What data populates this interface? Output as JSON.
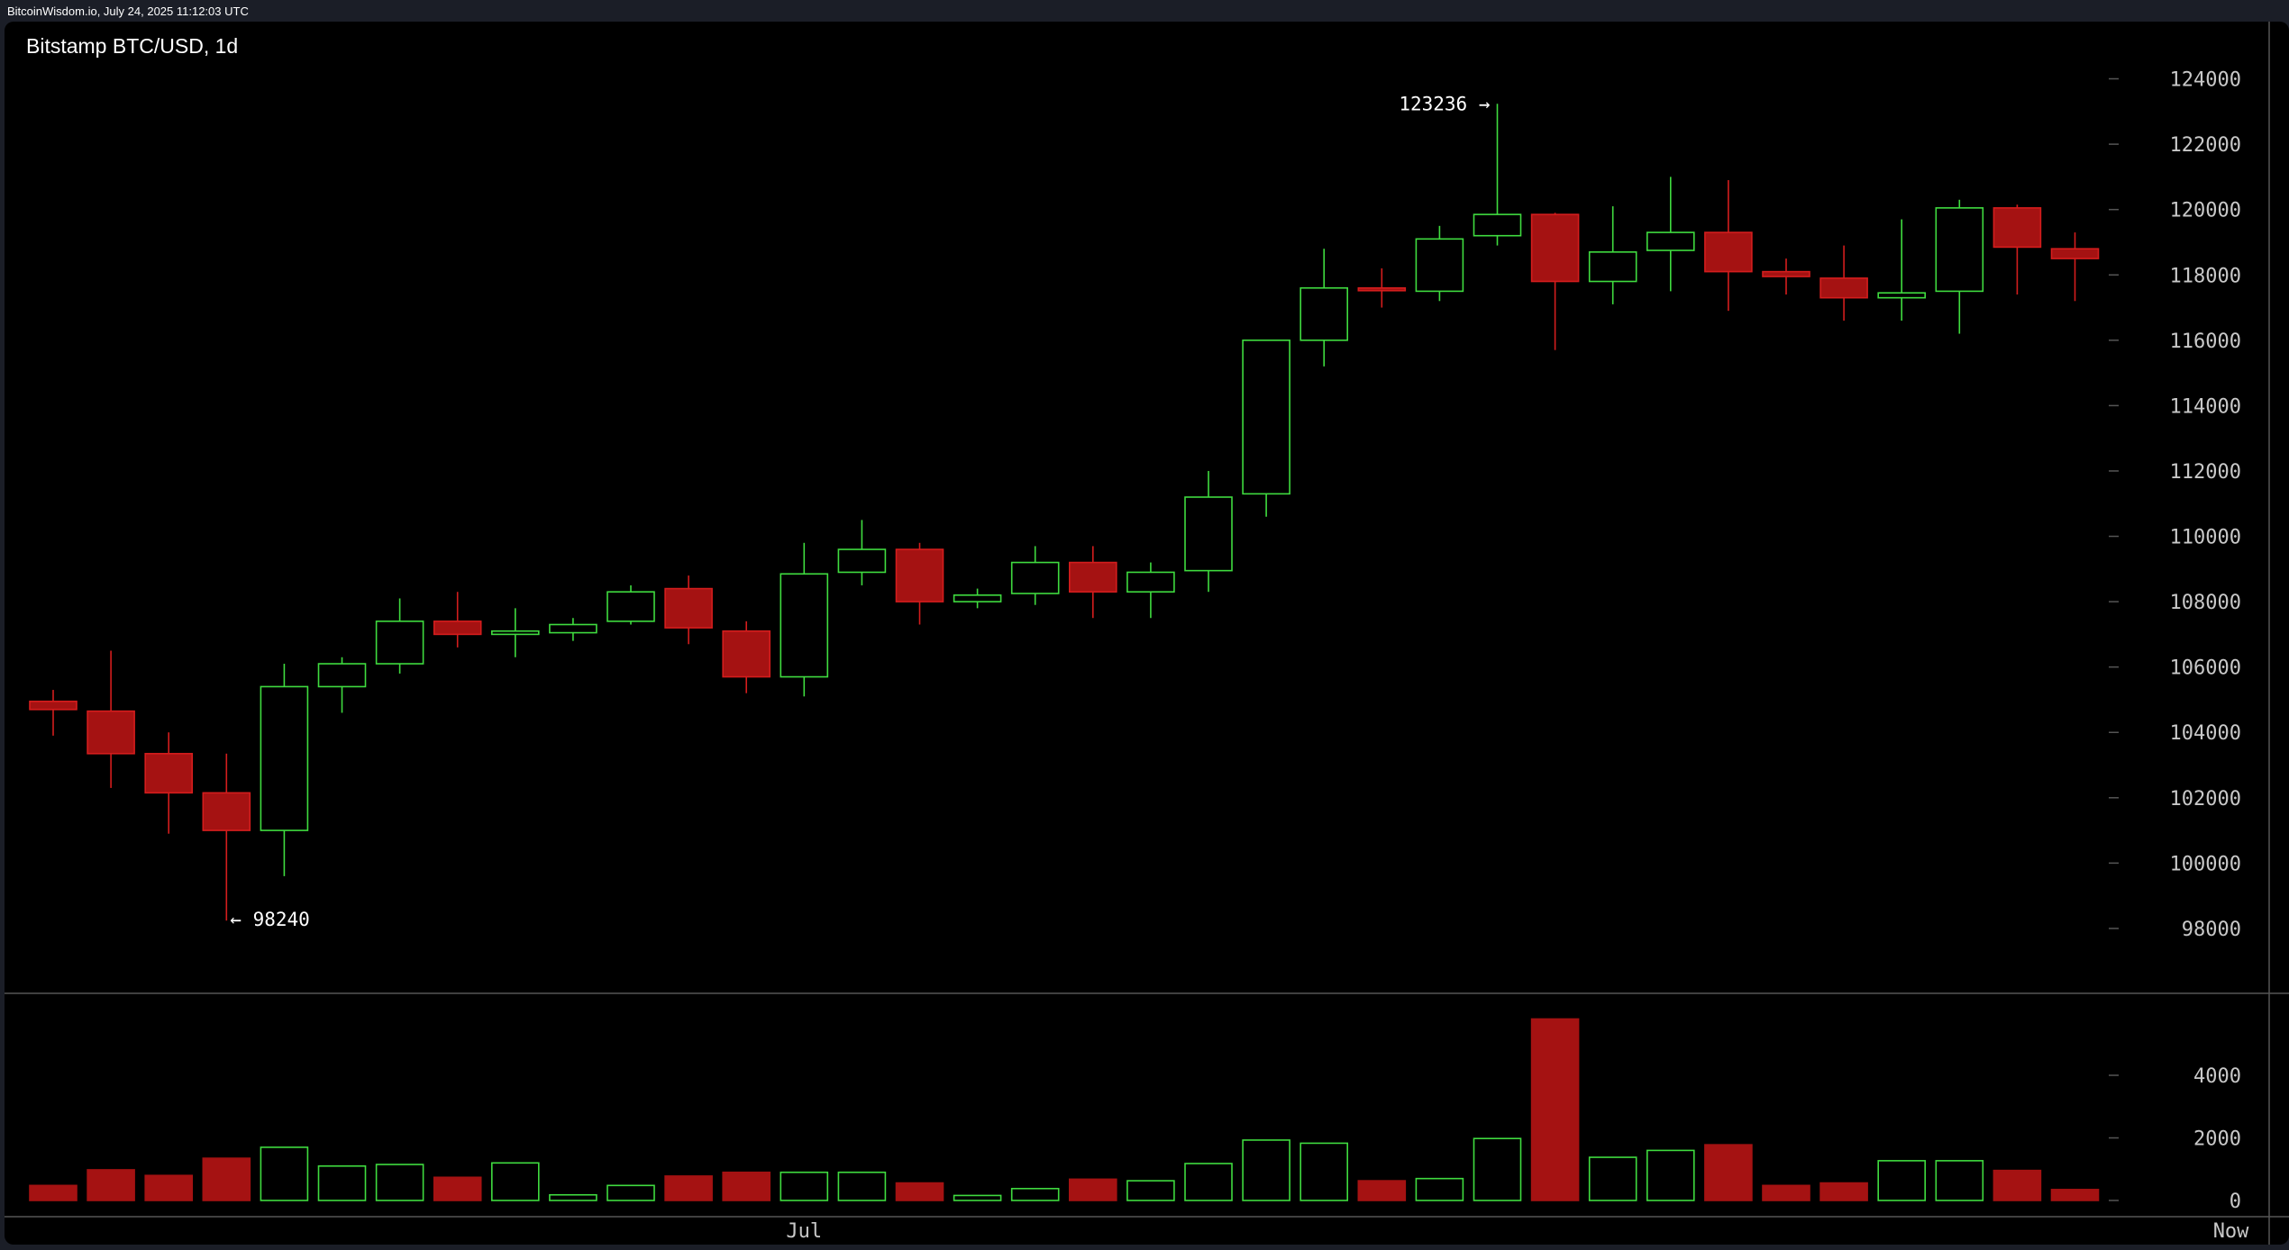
{
  "header": {
    "source_line": "BitcoinWisdom.io, July 24, 2025 11:12:03 UTC",
    "chart_title": "Bitstamp BTC/USD, 1d"
  },
  "colors": {
    "up": "#3fdb3f",
    "down_fill": "#a51212",
    "down_wick": "#d41d1d",
    "background": "#000000",
    "axis_text": "#c8c8c8",
    "separator": "#555555"
  },
  "annotations": {
    "high": {
      "label": "123236 →",
      "value": 123236
    },
    "low": {
      "label": "← 98240",
      "value": 98240
    }
  },
  "chart_data": {
    "type": "candlestick",
    "title": "Bitstamp BTC/USD, 1d",
    "price_axis": {
      "ylim": [
        96400,
        125200
      ],
      "ticks": [
        98000,
        100000,
        102000,
        104000,
        106000,
        108000,
        110000,
        112000,
        114000,
        116000,
        118000,
        120000,
        122000,
        124000
      ],
      "tick_labels": [
        "98000",
        "100000",
        "102000",
        "104000",
        "106000",
        "108000",
        "110000",
        "112000",
        "114000",
        "116000",
        "118000",
        "120000",
        "122000",
        "124000"
      ]
    },
    "volume_axis": {
      "ylim": [
        0,
        5900
      ],
      "ticks": [
        0,
        2000,
        4000
      ],
      "tick_labels": [
        "0",
        "2000",
        "4000"
      ]
    },
    "x_labels": [
      {
        "text": "Jul",
        "index": 13
      },
      {
        "text": "Now",
        "index": 37.7
      }
    ],
    "candles": [
      {
        "o": 104950,
        "h": 105300,
        "l": 103900,
        "c": 104700,
        "v": 480
      },
      {
        "o": 104650,
        "h": 106500,
        "l": 102300,
        "c": 103350,
        "v": 980
      },
      {
        "o": 103350,
        "h": 104000,
        "l": 100900,
        "c": 102150,
        "v": 800
      },
      {
        "o": 102150,
        "h": 103350,
        "l": 98240,
        "c": 101000,
        "v": 1350
      },
      {
        "o": 101000,
        "h": 106100,
        "l": 99600,
        "c": 105400,
        "v": 1700
      },
      {
        "o": 105400,
        "h": 106300,
        "l": 104600,
        "c": 106100,
        "v": 1100
      },
      {
        "o": 106100,
        "h": 108100,
        "l": 105800,
        "c": 107400,
        "v": 1150
      },
      {
        "o": 107400,
        "h": 108300,
        "l": 106600,
        "c": 107000,
        "v": 740
      },
      {
        "o": 107000,
        "h": 107800,
        "l": 106300,
        "c": 107100,
        "v": 1200
      },
      {
        "o": 107050,
        "h": 107500,
        "l": 106800,
        "c": 107300,
        "v": 180
      },
      {
        "o": 107400,
        "h": 108500,
        "l": 107300,
        "c": 108300,
        "v": 480
      },
      {
        "o": 108400,
        "h": 108800,
        "l": 106700,
        "c": 107200,
        "v": 780
      },
      {
        "o": 107100,
        "h": 107400,
        "l": 105200,
        "c": 105700,
        "v": 900
      },
      {
        "o": 105700,
        "h": 109800,
        "l": 105100,
        "c": 108850,
        "v": 900
      },
      {
        "o": 108900,
        "h": 110500,
        "l": 108500,
        "c": 109600,
        "v": 900
      },
      {
        "o": 109600,
        "h": 109800,
        "l": 107300,
        "c": 108000,
        "v": 560
      },
      {
        "o": 108000,
        "h": 108400,
        "l": 107800,
        "c": 108200,
        "v": 160
      },
      {
        "o": 108250,
        "h": 109700,
        "l": 107900,
        "c": 109200,
        "v": 380
      },
      {
        "o": 109200,
        "h": 109700,
        "l": 107500,
        "c": 108300,
        "v": 680
      },
      {
        "o": 108300,
        "h": 109200,
        "l": 107500,
        "c": 108900,
        "v": 630
      },
      {
        "o": 108950,
        "h": 112000,
        "l": 108300,
        "c": 111200,
        "v": 1180
      },
      {
        "o": 111300,
        "h": 116000,
        "l": 110600,
        "c": 116000,
        "v": 1930
      },
      {
        "o": 116000,
        "h": 118800,
        "l": 115200,
        "c": 117600,
        "v": 1830
      },
      {
        "o": 117600,
        "h": 118200,
        "l": 117000,
        "c": 117550,
        "v": 630
      },
      {
        "o": 117500,
        "h": 119500,
        "l": 117200,
        "c": 119100,
        "v": 700
      },
      {
        "o": 119200,
        "h": 123236,
        "l": 118900,
        "c": 119850,
        "v": 1980
      },
      {
        "o": 119850,
        "h": 119900,
        "l": 115700,
        "c": 117800,
        "v": 5800
      },
      {
        "o": 117800,
        "h": 120100,
        "l": 117100,
        "c": 118700,
        "v": 1380
      },
      {
        "o": 118750,
        "h": 121000,
        "l": 117500,
        "c": 119300,
        "v": 1600
      },
      {
        "o": 119300,
        "h": 120900,
        "l": 116900,
        "c": 118100,
        "v": 1780
      },
      {
        "o": 118100,
        "h": 118500,
        "l": 117400,
        "c": 117950,
        "v": 480
      },
      {
        "o": 117900,
        "h": 118900,
        "l": 116600,
        "c": 117300,
        "v": 560
      },
      {
        "o": 117300,
        "h": 119700,
        "l": 116600,
        "c": 117450,
        "v": 1270
      },
      {
        "o": 117500,
        "h": 120300,
        "l": 116200,
        "c": 120050,
        "v": 1270
      },
      {
        "o": 120050,
        "h": 120150,
        "l": 117400,
        "c": 118850,
        "v": 960
      },
      {
        "o": 118800,
        "h": 119300,
        "l": 117200,
        "c": 118500,
        "v": 350
      }
    ]
  }
}
